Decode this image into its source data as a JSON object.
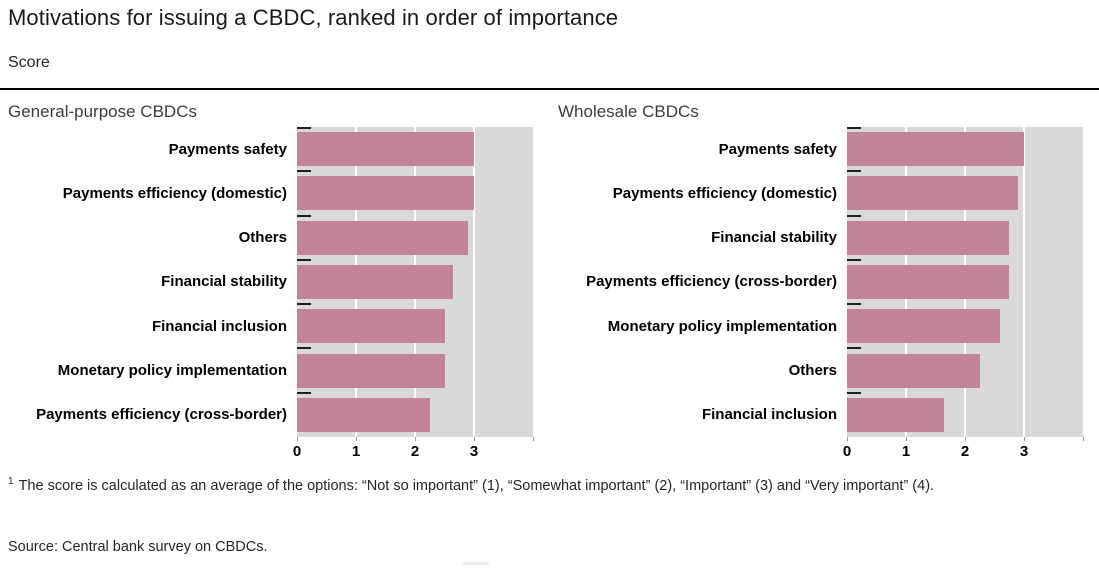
{
  "header": {
    "title": "Motivations for issuing a CBDC, ranked in order of importance",
    "unit_label": "Score"
  },
  "colors": {
    "bar": "#c28497",
    "plot_background": "#d9d9d9",
    "gridline": "#ffffff"
  },
  "chart_data": [
    {
      "type": "bar",
      "orientation": "horizontal",
      "title": "General-purpose CBDCs",
      "categories": [
        "Payments safety",
        "Payments efficiency (domestic)",
        "Others",
        "Financial stability",
        "Financial inclusion",
        "Monetary policy implementation",
        "Payments efficiency (cross-border)"
      ],
      "values": [
        3.0,
        3.0,
        2.9,
        2.65,
        2.5,
        2.5,
        2.25
      ],
      "xlabel": "",
      "ylabel": "",
      "xlim": [
        0,
        4
      ],
      "xticks": [
        0,
        1,
        2,
        3
      ],
      "grid": true,
      "legend": false
    },
    {
      "type": "bar",
      "orientation": "horizontal",
      "title": "Wholesale CBDCs",
      "categories": [
        "Payments safety",
        "Payments efficiency (domestic)",
        "Financial stability",
        "Payments efficiency (cross-border)",
        "Monetary policy implementation",
        "Others",
        "Financial inclusion"
      ],
      "values": [
        3.0,
        2.9,
        2.75,
        2.75,
        2.6,
        2.25,
        1.65
      ],
      "xlabel": "",
      "ylabel": "",
      "xlim": [
        0,
        4
      ],
      "xticks": [
        0,
        1,
        2,
        3
      ],
      "grid": true,
      "legend": false
    }
  ],
  "footnote": {
    "marker": "1",
    "text": "The score is calculated as an average of the options: “Not so important” (1), “Somewhat important” (2), “Important” (3) and “Very important” (4)."
  },
  "source": "Source: Central bank survey on CBDCs."
}
